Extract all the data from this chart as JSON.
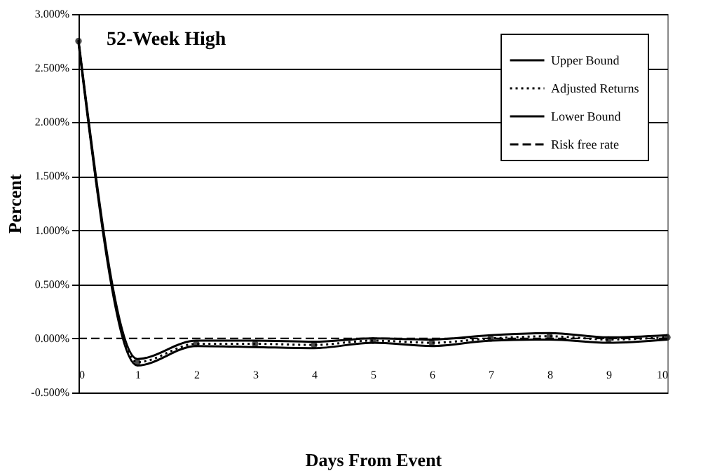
{
  "chart_data": {
    "type": "line",
    "xlabel": "Days From Event",
    "ylabel": "Percent",
    "annotations": [
      "52-Week High"
    ],
    "x": [
      0,
      1,
      2,
      3,
      4,
      5,
      6,
      7,
      8,
      9,
      10
    ],
    "series": [
      {
        "name": "Upper Bound",
        "color": "#000000",
        "line_style": "solid",
        "values": [
          2.76,
          -0.19,
          -0.02,
          -0.02,
          -0.03,
          0.0,
          -0.01,
          0.03,
          0.05,
          0.01,
          0.03
        ]
      },
      {
        "name": "Adjusted Returns",
        "color": "#000000",
        "line_style": "dotted",
        "marker": "circle",
        "values": [
          2.75,
          -0.22,
          -0.05,
          -0.05,
          -0.06,
          -0.02,
          -0.04,
          0.0,
          0.02,
          -0.01,
          0.01
        ]
      },
      {
        "name": "Lower Bound",
        "color": "#000000",
        "line_style": "solid",
        "values": [
          2.73,
          -0.25,
          -0.07,
          -0.08,
          -0.09,
          -0.04,
          -0.07,
          -0.02,
          -0.01,
          -0.04,
          -0.01
        ]
      }
    ],
    "ref_lines": [
      {
        "axis": "y",
        "value": 0,
        "label": "Risk free rate",
        "color": "#000000",
        "line_style": "dashed"
      }
    ],
    "xlim": [
      0,
      10
    ],
    "xticks": [
      0,
      1,
      2,
      3,
      4,
      5,
      6,
      7,
      8,
      9,
      10
    ],
    "ylim": [
      -0.5,
      3
    ],
    "yticks": [
      {
        "value": -0.5,
        "label": "-0.500%"
      },
      {
        "value": 0,
        "label": "0.000%"
      },
      {
        "value": 0.5,
        "label": "0.500%"
      },
      {
        "value": 1,
        "label": "1.000%"
      },
      {
        "value": 1.5,
        "label": "1.500%"
      },
      {
        "value": 2,
        "label": "2.000%"
      },
      {
        "value": 2.5,
        "label": "2.500%"
      },
      {
        "value": 3,
        "label": "3.000%"
      }
    ],
    "grid": "y",
    "legend": "top right"
  }
}
